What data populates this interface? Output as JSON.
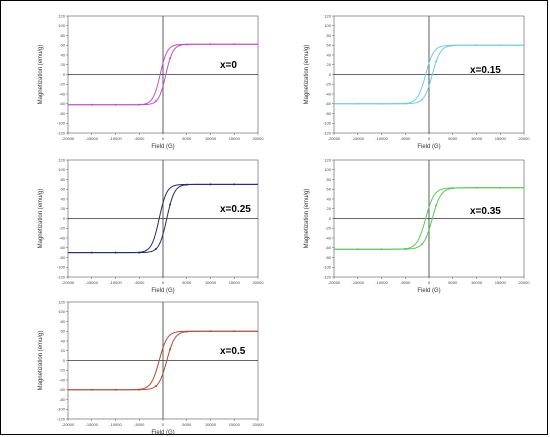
{
  "chart_data": [
    {
      "type": "line",
      "label": "x=0",
      "color": "#c050c8",
      "xlabel": "Field (G)",
      "ylabel": "Magnetization (emu/g)",
      "xlim": [
        -20000,
        20000
      ],
      "ylim": [
        -120,
        120
      ],
      "xticks": [
        "-20000",
        "-15000",
        "-10000",
        "-5000",
        "0",
        "5000",
        "10000",
        "15000",
        "20000"
      ],
      "yticks": [
        "-120",
        "-100",
        "-80",
        "-60",
        "-40",
        "-20",
        "0",
        "20",
        "40",
        "60",
        "80",
        "100",
        "120"
      ],
      "ms": 62,
      "hc": 600,
      "w": 1500
    },
    {
      "type": "line",
      "label": "x=0.15",
      "color": "#70cce0",
      "xlabel": "Field (G)",
      "ylabel": "Magnetization (emu/g)",
      "xlim": [
        -20000,
        20000
      ],
      "ylim": [
        -120,
        120
      ],
      "xticks": [
        "-20000",
        "-15000",
        "-10000",
        "-5000",
        "0",
        "5000",
        "10000",
        "15000",
        "20000"
      ],
      "yticks": [
        "-120",
        "-100",
        "-80",
        "-60",
        "-40",
        "-20",
        "0",
        "20",
        "40",
        "60",
        "80",
        "100",
        "120"
      ],
      "ms": 60,
      "hc": 700,
      "w": 1700
    },
    {
      "type": "line",
      "label": "x=0.25",
      "color": "#2a2a6a",
      "xlabel": "Field (G)",
      "ylabel": "Magnetization (emu/g)",
      "xlim": [
        -20000,
        20000
      ],
      "ylim": [
        -120,
        120
      ],
      "xticks": [
        "-20000",
        "-15000",
        "-10000",
        "-5000",
        "0",
        "5000",
        "10000",
        "15000",
        "20000"
      ],
      "yticks": [
        "-120",
        "-100",
        "-80",
        "-60",
        "-40",
        "-20",
        "0",
        "20",
        "40",
        "60",
        "80",
        "100",
        "120"
      ],
      "ms": 70,
      "hc": 800,
      "w": 1600
    },
    {
      "type": "line",
      "label": "x=0.35",
      "color": "#5cc85c",
      "xlabel": "Field (G)",
      "ylabel": "Magnetization (emu/g)",
      "xlim": [
        -20000,
        20000
      ],
      "ylim": [
        -120,
        120
      ],
      "xticks": [
        "-20000",
        "-15000",
        "-10000",
        "-5000",
        "0",
        "5000",
        "10000",
        "15000",
        "20000"
      ],
      "yticks": [
        "-120",
        "-100",
        "-80",
        "-60",
        "-40",
        "-20",
        "0",
        "20",
        "40",
        "60",
        "80",
        "100",
        "120"
      ],
      "ms": 63,
      "hc": 700,
      "w": 1800
    },
    {
      "type": "line",
      "label": "x=0.5",
      "color": "#b04a3a",
      "xlabel": "Field (G)",
      "ylabel": "Magnetization (emu/g)",
      "xlim": [
        -20000,
        20000
      ],
      "ylim": [
        -120,
        120
      ],
      "xticks": [
        "-20000",
        "-15000",
        "-10000",
        "-5000",
        "0",
        "5000",
        "10000",
        "15000",
        "20000"
      ],
      "yticks": [
        "-120",
        "-100",
        "-80",
        "-60",
        "-40",
        "-20",
        "0",
        "20",
        "40",
        "60",
        "80",
        "100",
        "120"
      ],
      "ms": 60,
      "hc": 800,
      "w": 1700
    }
  ]
}
